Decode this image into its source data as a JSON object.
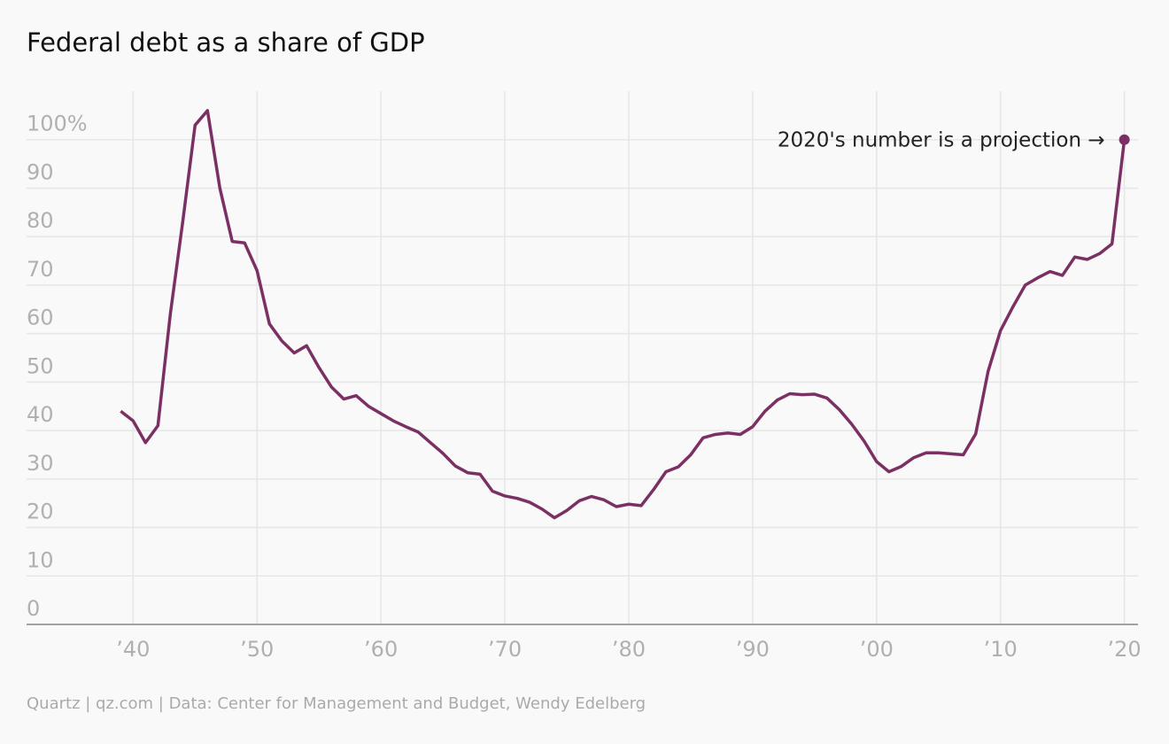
{
  "chart_data": {
    "type": "line",
    "title": "Federal debt as a share of GDP",
    "source": "Quartz | qz.com | Data: Center for Management and Budget, Wendy Edelberg",
    "annotation": "2020's number is a projection →",
    "x": [
      1939,
      1940,
      1941,
      1942,
      1943,
      1944,
      1945,
      1946,
      1947,
      1948,
      1949,
      1950,
      1951,
      1952,
      1953,
      1954,
      1955,
      1956,
      1957,
      1958,
      1959,
      1960,
      1961,
      1962,
      1963,
      1964,
      1965,
      1966,
      1967,
      1968,
      1969,
      1970,
      1971,
      1972,
      1973,
      1974,
      1975,
      1976,
      1977,
      1978,
      1979,
      1980,
      1981,
      1982,
      1983,
      1984,
      1985,
      1986,
      1987,
      1988,
      1989,
      1990,
      1991,
      1992,
      1993,
      1994,
      1995,
      1996,
      1997,
      1998,
      1999,
      2000,
      2001,
      2002,
      2003,
      2004,
      2005,
      2006,
      2007,
      2008,
      2009,
      2010,
      2011,
      2012,
      2013,
      2014,
      2015,
      2016,
      2017,
      2018,
      2019,
      2020
    ],
    "values": [
      44,
      42,
      37.5,
      41,
      64,
      83,
      103,
      106,
      90,
      79,
      78.7,
      73,
      62,
      58.5,
      56,
      57.5,
      53,
      49,
      46.5,
      47.2,
      45,
      43.5,
      42,
      40.8,
      39.7,
      37.5,
      35.3,
      32.7,
      31.3,
      31,
      27.5,
      26.5,
      26,
      25.2,
      23.8,
      22,
      23.5,
      25.5,
      26.4,
      25.7,
      24.3,
      24.8,
      24.5,
      27.8,
      31.5,
      32.5,
      35,
      38.5,
      39.2,
      39.5,
      39.2,
      40.8,
      44,
      46.3,
      47.6,
      47.4,
      47.5,
      46.7,
      44.3,
      41.3,
      37.8,
      33.6,
      31.5,
      32.6,
      34.4,
      35.4,
      35.4,
      35.2,
      35,
      39.3,
      52.2,
      60.6,
      65.5,
      70,
      71.5,
      72.8,
      72,
      75.8,
      75.3,
      76.5,
      78.5,
      100
    ],
    "color": "#7b3064",
    "xlim": [
      1931.4,
      2021.1
    ],
    "ylim": [
      0,
      110
    ],
    "xticks": [
      {
        "value": 1940,
        "label": "’40"
      },
      {
        "value": 1950,
        "label": "’50"
      },
      {
        "value": 1960,
        "label": "’60"
      },
      {
        "value": 1970,
        "label": "’70"
      },
      {
        "value": 1980,
        "label": "’80"
      },
      {
        "value": 1990,
        "label": "’90"
      },
      {
        "value": 2000,
        "label": "’00"
      },
      {
        "value": 2010,
        "label": "’10"
      },
      {
        "value": 2020,
        "label": "’20"
      }
    ],
    "yticks": [
      0,
      10,
      20,
      30,
      40,
      50,
      60,
      70,
      80,
      90,
      {
        "value": 100,
        "label": "100%"
      }
    ],
    "grid": true
  }
}
